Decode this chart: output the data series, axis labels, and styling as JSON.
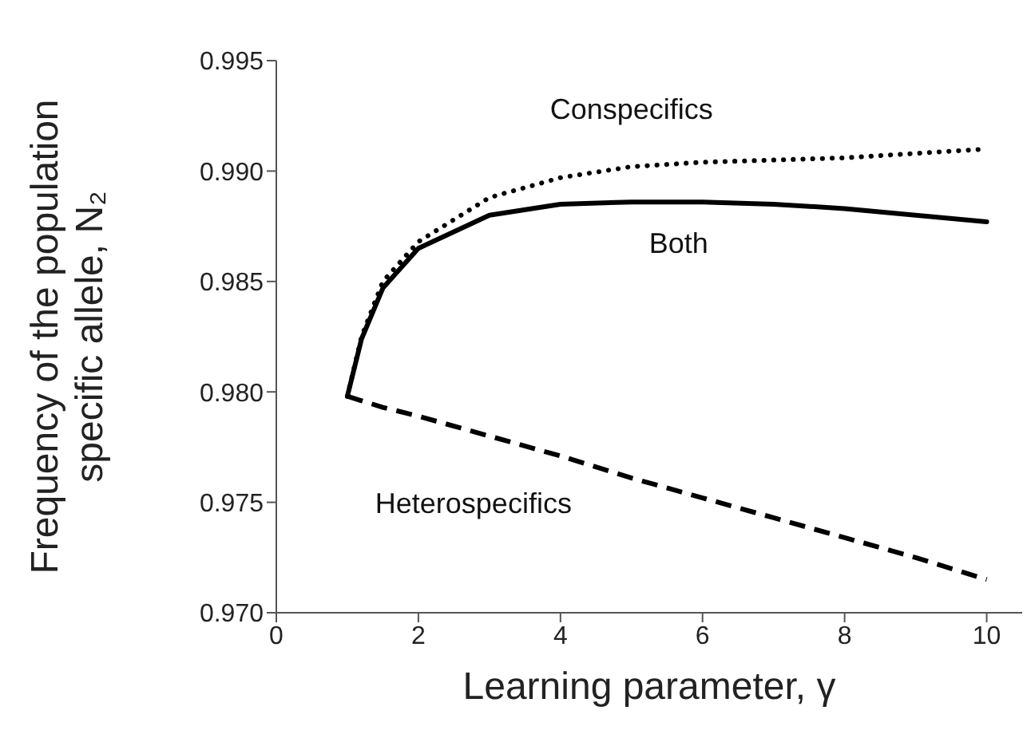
{
  "chart_data": {
    "type": "line",
    "xlabel": "Learning parameter, γ",
    "ylabel": "Frequency of the population specific allele, N₂",
    "x": [
      1,
      1.2,
      1.5,
      2,
      3,
      4,
      5,
      6,
      7,
      8,
      9,
      10
    ],
    "series": [
      {
        "name": "Conspecifics",
        "color": "#000000",
        "line_style": "dotted",
        "values": [
          0.9798,
          0.9825,
          0.985,
          0.9868,
          0.9888,
          0.9897,
          0.9902,
          0.9904,
          0.9905,
          0.9906,
          0.9908,
          0.991
        ]
      },
      {
        "name": "Both",
        "color": "#000000",
        "line_style": "solid",
        "values": [
          0.9798,
          0.9824,
          0.9847,
          0.9865,
          0.988,
          0.9885,
          0.9886,
          0.9886,
          0.9885,
          0.9883,
          0.988,
          0.9877
        ]
      },
      {
        "name": "Heterospecifics",
        "color": "#000000",
        "line_style": "dashed",
        "values": [
          0.9798,
          0.9796,
          0.9793,
          0.9789,
          0.978,
          0.9771,
          0.9761,
          0.9752,
          0.9743,
          0.9734,
          0.9725,
          0.9715
        ]
      }
    ],
    "xlim": [
      0,
      10.5
    ],
    "xticks": [
      0,
      2,
      4,
      6,
      8,
      10
    ],
    "ylim": [
      0.97,
      0.995
    ],
    "yticks": [
      {
        "value": 0.97,
        "label": "0.970"
      },
      {
        "value": 0.975,
        "label": "0.975"
      },
      {
        "value": 0.98,
        "label": "0.980"
      },
      {
        "value": 0.985,
        "label": "0.985"
      },
      {
        "value": 0.99,
        "label": "0.990"
      },
      {
        "value": 0.995,
        "label": "0.995"
      }
    ],
    "grid": false,
    "legend": false,
    "marker": "none"
  }
}
